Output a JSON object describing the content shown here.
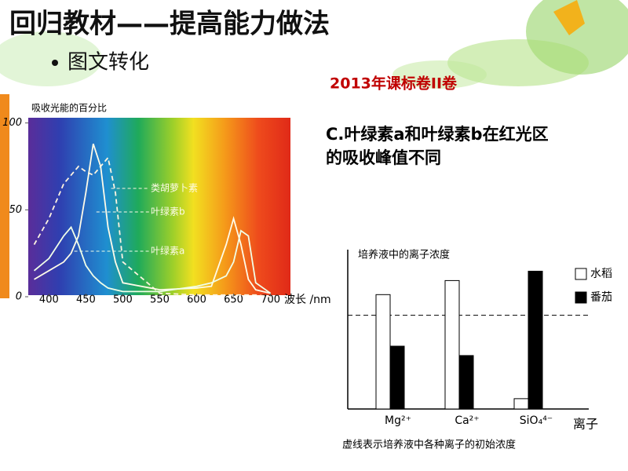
{
  "slide": {
    "title": "回归教材——提高能力做法",
    "bullet": "图文转化",
    "source": "2013年课标卷II卷",
    "statement": "C.叶绿素a和叶绿素b在红光区的吸收峰值不同"
  },
  "chart_data": [
    {
      "type": "line",
      "y_label": "吸收光能的百分比",
      "x_label": "波长 /nm",
      "xlim": [
        372,
        727
      ],
      "ylim": [
        0,
        103
      ],
      "xticks": [
        400,
        450,
        500,
        550,
        600,
        650,
        700
      ],
      "yticks": [
        0,
        50,
        100
      ],
      "x": [
        380,
        400,
        420,
        430,
        440,
        450,
        460,
        470,
        480,
        490,
        500,
        550,
        600,
        620,
        640,
        650,
        660,
        670,
        680,
        700
      ],
      "series": [
        {
          "name": "类胡萝卜素",
          "color": "#fff4e0",
          "dash": true,
          "values": [
            30,
            45,
            65,
            70,
            75,
            72,
            70,
            75,
            80,
            60,
            20,
            2,
            1,
            1,
            1,
            1,
            1,
            1,
            1,
            0
          ]
        },
        {
          "name": "叶绿素b",
          "color": "#fffbe8",
          "dash": false,
          "values": [
            10,
            15,
            20,
            25,
            35,
            60,
            88,
            75,
            40,
            20,
            8,
            4,
            5,
            6,
            30,
            45,
            30,
            10,
            4,
            2
          ]
        },
        {
          "name": "叶绿素a",
          "color": "#f0ffe8",
          "dash": false,
          "values": [
            15,
            22,
            35,
            40,
            30,
            18,
            12,
            8,
            5,
            4,
            3,
            3,
            6,
            8,
            12,
            20,
            38,
            35,
            8,
            2
          ]
        }
      ]
    },
    {
      "type": "bar",
      "y_label": "培养液中的离子浓度",
      "x_label": "离子",
      "note": "虚线表示培养液中各种离子的初始浓度",
      "ylim": [
        0,
        170
      ],
      "hline": 100,
      "legend": "top-right",
      "categories": [
        "Mg²⁺",
        "Ca²⁺",
        "SiO₄⁴⁻"
      ],
      "series": [
        {
          "name": "水稻",
          "color": "#ffffff",
          "values": [
            122,
            137,
            11
          ]
        },
        {
          "name": "番茄",
          "color": "#000000",
          "values": [
            67,
            57,
            147
          ]
        }
      ]
    }
  ]
}
